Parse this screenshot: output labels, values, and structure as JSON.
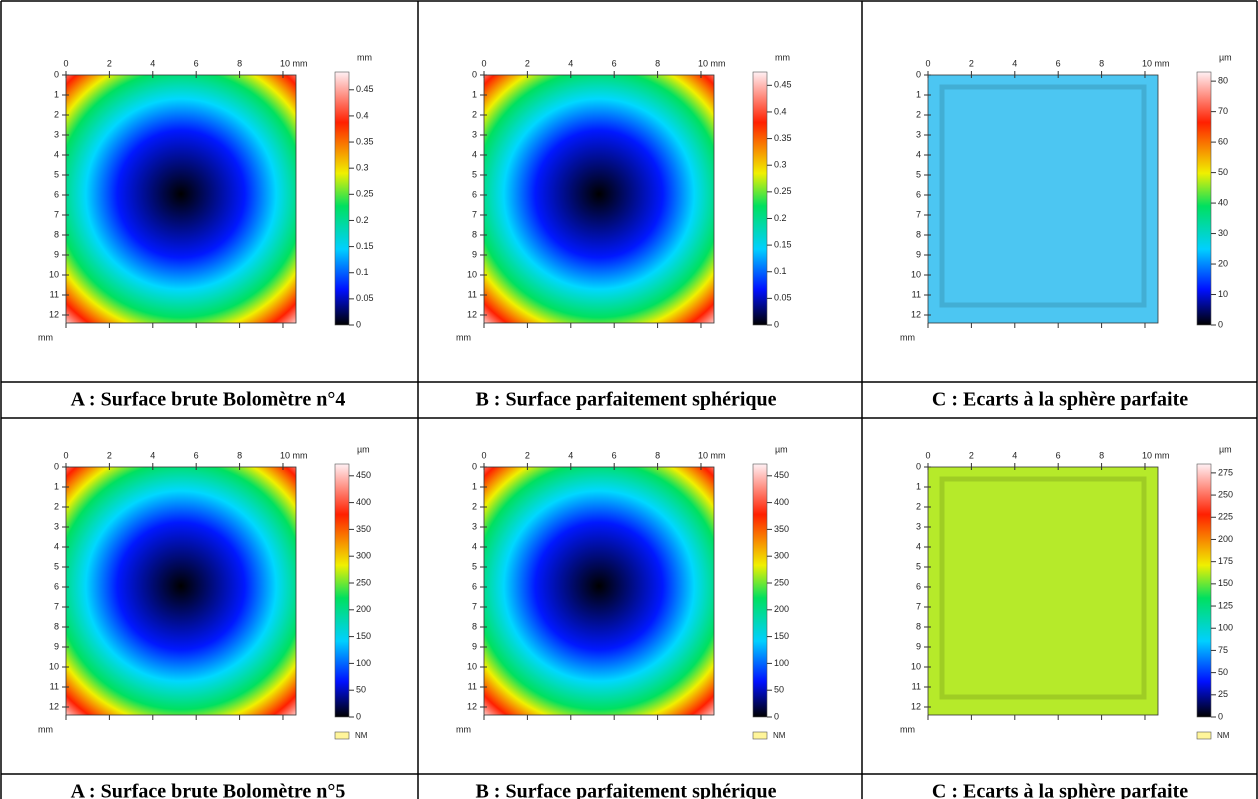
{
  "panels": [
    {
      "caption": "A : Surface brute Bolomètre n°4",
      "surface": "spherical",
      "xlim": [
        0,
        10.6
      ],
      "ylim": [
        0,
        12.4
      ],
      "xticks": [
        0,
        2,
        4,
        6,
        8,
        {
          "value": 10,
          "label": "10 mm"
        }
      ],
      "yticks": [
        0,
        1,
        2,
        3,
        4,
        5,
        6,
        7,
        8,
        9,
        10,
        11,
        12
      ],
      "y_unit": "mm",
      "scale_unit": "mm",
      "scale_lim": [
        0,
        0.484
      ],
      "scale_ticks": [
        0,
        0.05,
        0.1,
        0.15,
        0.2,
        0.25,
        0.3,
        0.35,
        0.4,
        0.45
      ]
    },
    {
      "caption": "B : Surface parfaitement sphérique",
      "surface": "spherical",
      "xlim": [
        0,
        10.6
      ],
      "ylim": [
        0,
        12.4
      ],
      "xticks": [
        0,
        2,
        4,
        6,
        8,
        {
          "value": 10,
          "label": "10 mm"
        }
      ],
      "yticks": [
        0,
        1,
        2,
        3,
        4,
        5,
        6,
        7,
        8,
        9,
        10,
        11,
        12
      ],
      "y_unit": "mm",
      "scale_unit": "mm",
      "scale_lim": [
        0,
        0.475
      ],
      "scale_ticks": [
        0,
        0.05,
        0.1,
        0.15,
        0.2,
        0.25,
        0.3,
        0.35,
        0.4,
        0.45
      ]
    },
    {
      "caption": "C : Ecarts à la sphère parfaite",
      "surface": "flat",
      "surface_color": "#4cc6f2",
      "xlim": [
        0,
        10.6
      ],
      "ylim": [
        0,
        12.4
      ],
      "xticks": [
        0,
        2,
        4,
        6,
        8,
        {
          "value": 10,
          "label": "10 mm"
        }
      ],
      "yticks": [
        0,
        1,
        2,
        3,
        4,
        5,
        6,
        7,
        8,
        9,
        10,
        11,
        12
      ],
      "y_unit": "mm",
      "scale_unit": "µm",
      "scale_lim": [
        0,
        83
      ],
      "scale_ticks": [
        0,
        10,
        20,
        30,
        40,
        50,
        60,
        70,
        80
      ]
    },
    {
      "caption": "A : Surface brute Bolomètre n°5",
      "surface": "spherical",
      "xlim": [
        0,
        10.6
      ],
      "ylim": [
        0,
        12.4
      ],
      "xticks": [
        0,
        2,
        4,
        6,
        8,
        {
          "value": 10,
          "label": "10 mm"
        }
      ],
      "yticks": [
        0,
        1,
        2,
        3,
        4,
        5,
        6,
        7,
        8,
        9,
        10,
        11,
        12
      ],
      "y_unit": "mm",
      "scale_unit": "µm",
      "scale_lim": [
        0,
        472
      ],
      "scale_ticks": [
        0,
        50,
        100,
        150,
        200,
        250,
        300,
        350,
        400,
        450
      ],
      "nm_label": "NM"
    },
    {
      "caption": "B : Surface parfaitement sphérique",
      "surface": "spherical",
      "xlim": [
        0,
        10.6
      ],
      "ylim": [
        0,
        12.4
      ],
      "xticks": [
        0,
        2,
        4,
        6,
        8,
        {
          "value": 10,
          "label": "10 mm"
        }
      ],
      "yticks": [
        0,
        1,
        2,
        3,
        4,
        5,
        6,
        7,
        8,
        9,
        10,
        11,
        12
      ],
      "y_unit": "mm",
      "scale_unit": "µm",
      "scale_lim": [
        0,
        472
      ],
      "scale_ticks": [
        0,
        50,
        100,
        150,
        200,
        250,
        300,
        350,
        400,
        450
      ],
      "nm_label": "NM"
    },
    {
      "caption": "C : Ecarts à la sphère parfaite",
      "surface": "flat",
      "surface_color": "#b6ea2a",
      "xlim": [
        0,
        10.6
      ],
      "ylim": [
        0,
        12.4
      ],
      "xticks": [
        0,
        2,
        4,
        6,
        8,
        {
          "value": 10,
          "label": "10 mm"
        }
      ],
      "yticks": [
        0,
        1,
        2,
        3,
        4,
        5,
        6,
        7,
        8,
        9,
        10,
        11,
        12
      ],
      "y_unit": "mm",
      "scale_unit": "µm",
      "scale_lim": [
        0,
        285
      ],
      "scale_ticks": [
        0,
        25,
        50,
        75,
        100,
        125,
        150,
        175,
        200,
        225,
        250,
        275
      ],
      "nm_label": "NM"
    }
  ]
}
